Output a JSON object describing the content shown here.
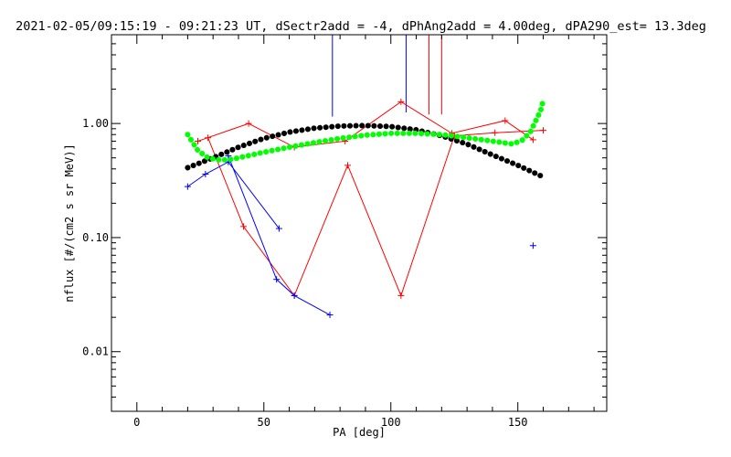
{
  "chart_data": {
    "type": "line",
    "title": "2021-02-05/09:15:19 - 09:21:23 UT, dSectr2add = -4, dPhAng2add = 4.00deg, dPA290_est=  13.3deg",
    "xlabel": "PA [deg]",
    "ylabel": "nflux [#/(cm2 s sr MeV)]",
    "xlim": [
      -10,
      185
    ],
    "ylim": [
      0.003,
      6.0
    ],
    "yscale": "log",
    "xticks": [
      0,
      50,
      100,
      150
    ],
    "xtick_labels": [
      "0",
      "50",
      "100",
      "150"
    ],
    "yticks": [
      0.01,
      0.1,
      1.0
    ],
    "ytick_labels": [
      "0.01",
      "0.10",
      "1.00"
    ],
    "grid": false,
    "legend": "none",
    "colors": {
      "red": "#ff0000",
      "blue": "#0000ff",
      "black": "#000000",
      "green": "#00ff00"
    },
    "series": [
      {
        "color": "#ff0000",
        "style": "line-plus",
        "x": [
          24,
          44,
          62,
          82,
          104,
          124,
          145,
          156
        ],
        "y": [
          0.7,
          1.0,
          0.62,
          0.7,
          1.55,
          0.82,
          1.06,
          0.72
        ]
      },
      {
        "color": "#ff0000",
        "style": "line-plus",
        "x": [
          28,
          42,
          62,
          83,
          104,
          125,
          141,
          160
        ],
        "y": [
          0.75,
          0.125,
          0.031,
          0.43,
          0.031,
          0.78,
          0.83,
          0.87
        ]
      },
      {
        "color": "#0000ff",
        "style": "line-plus",
        "x": [
          20,
          27,
          36,
          56
        ],
        "y": [
          0.28,
          0.36,
          0.46,
          0.12
        ]
      },
      {
        "color": "#0000ff",
        "style": "line-plus",
        "x": [
          36,
          55,
          62,
          76
        ],
        "y": [
          0.52,
          0.043,
          0.031,
          0.021
        ]
      },
      {
        "color": "#0000ff",
        "style": "plus",
        "x": [
          156
        ],
        "y": [
          0.085
        ]
      },
      {
        "color": "#000000",
        "style": "dots",
        "x": [
          20,
          30,
          40,
          50,
          60,
          70,
          80,
          90,
          100,
          110,
          120,
          130,
          140,
          150,
          160
        ],
        "y": [
          0.41,
          0.5,
          0.62,
          0.74,
          0.84,
          0.91,
          0.95,
          0.96,
          0.94,
          0.88,
          0.78,
          0.66,
          0.53,
          0.43,
          0.34
        ]
      },
      {
        "color": "#00ff00",
        "style": "dots",
        "x": [
          20,
          24,
          28,
          32,
          36,
          40,
          50,
          60,
          70,
          80,
          90,
          100,
          110,
          120,
          130,
          140,
          148,
          152,
          155,
          157,
          159,
          160
        ],
        "y": [
          0.8,
          0.58,
          0.5,
          0.48,
          0.48,
          0.5,
          0.56,
          0.62,
          0.68,
          0.74,
          0.79,
          0.82,
          0.82,
          0.8,
          0.75,
          0.7,
          0.66,
          0.72,
          0.85,
          1.05,
          1.3,
          1.6
        ]
      }
    ],
    "vertical_lines": [
      {
        "x": 77,
        "y_bottom": 1.15,
        "color": "#0000ff"
      },
      {
        "x": 106,
        "y_bottom": 1.25,
        "color": "#0000ff"
      },
      {
        "x": 115,
        "y_bottom": 1.2,
        "color": "#ff0000"
      },
      {
        "x": 120,
        "y_bottom": 1.2,
        "color": "#ff0000"
      }
    ]
  }
}
